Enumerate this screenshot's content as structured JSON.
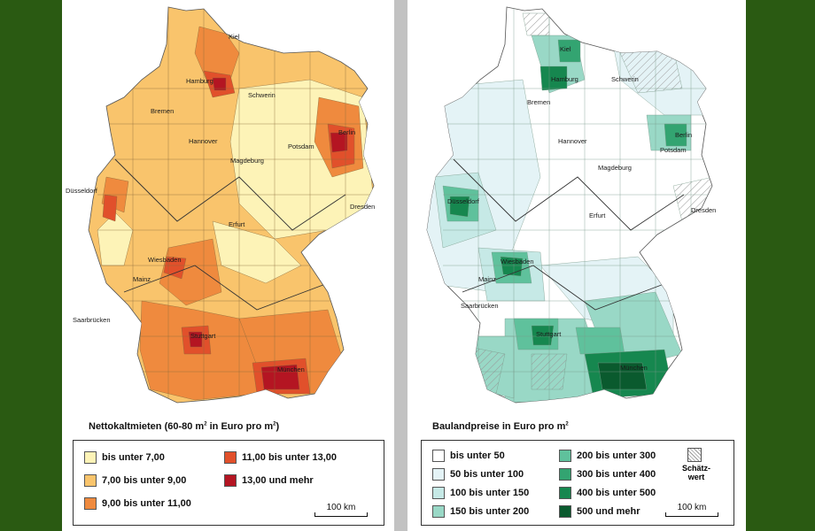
{
  "left": {
    "caption_main": "Nettokaltmieten (60-80 m",
    "caption_unit1": "2",
    "caption_mid": " in Euro pro m",
    "caption_unit2": "2",
    "caption_end": ")",
    "legend": [
      {
        "label": "bis unter 7,00",
        "color": "#fdf3b7"
      },
      {
        "label": "7,00 bis unter 9,00",
        "color": "#f9c46c"
      },
      {
        "label": "9,00 bis unter 11,00",
        "color": "#ef8a3e"
      },
      {
        "label": "11,00 bis unter 13,00",
        "color": "#e1502b"
      },
      {
        "label": "13,00 und mehr",
        "color": "#b41522"
      }
    ],
    "scale": "100 km",
    "cities": [
      "Kiel",
      "Hamburg",
      "Schwerin",
      "Bremen",
      "Hannover",
      "Berlin",
      "Potsdam",
      "Magdeburg",
      "Düsseldorf",
      "Erfurt",
      "Dresden",
      "Wiesbaden",
      "Mainz",
      "Saarbrücken",
      "Stuttgart",
      "München"
    ]
  },
  "right": {
    "caption_main": "Baulandpreise in Euro pro m",
    "caption_unit": "2",
    "legend": [
      {
        "label": "bis unter 50",
        "color": "#ffffff"
      },
      {
        "label": "50 bis unter 100",
        "color": "#e4f3f6"
      },
      {
        "label": "100 bis unter 150",
        "color": "#c6e9e6"
      },
      {
        "label": "150 bis unter 200",
        "color": "#99d8c6"
      },
      {
        "label": "200 bis unter 300",
        "color": "#5fc19c"
      },
      {
        "label": "300 bis unter 400",
        "color": "#33a471"
      },
      {
        "label": "400 bis unter 500",
        "color": "#16874f"
      },
      {
        "label": "500 und mehr",
        "color": "#0a5a2e"
      }
    ],
    "estimate_label": "Schätz-\nwert",
    "scale": "100 km",
    "cities": [
      "Kiel",
      "Hamburg",
      "Schwerin",
      "Bremen",
      "Hannover",
      "Berlin",
      "Potsdam",
      "Magdeburg",
      "Düsseldorf",
      "Erfurt",
      "Dresden",
      "Wiesbaden",
      "Mainz",
      "Saarbrücken",
      "Stuttgart",
      "München"
    ]
  }
}
